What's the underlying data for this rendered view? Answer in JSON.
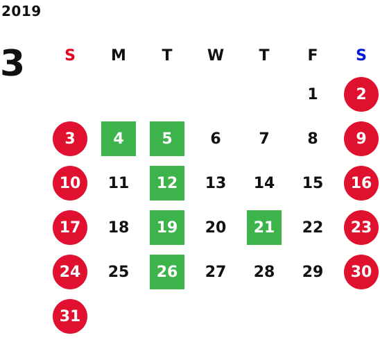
{
  "calendar": {
    "year": "2019",
    "month": "3",
    "weekdays": [
      "S",
      "M",
      "T",
      "W",
      "T",
      "F",
      "S"
    ],
    "weekday_colors": [
      "#e8001c",
      "#111111",
      "#111111",
      "#111111",
      "#111111",
      "#111111",
      "#0019d6"
    ],
    "weekend_color": "#e0102f",
    "highlight_color": "#3cb44b",
    "first_weekday_index": 5,
    "days_in_month": 31,
    "highlighted_days": [
      4,
      5,
      12,
      19,
      21,
      26
    ]
  }
}
